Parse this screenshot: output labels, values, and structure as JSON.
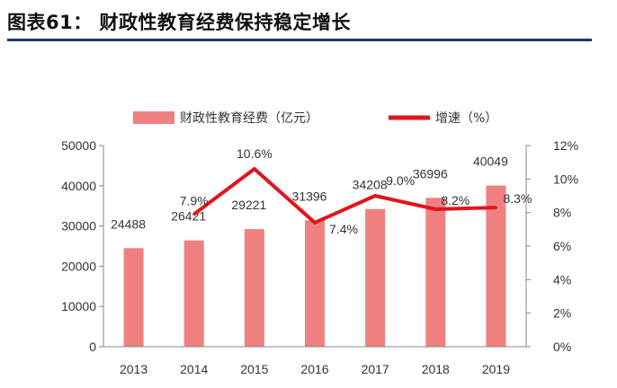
{
  "header": {
    "title": "图表61：  财政性教育经费保持稳定增长",
    "rule_color": "#1f3a6d"
  },
  "chart_data": {
    "type": "bar",
    "categories": [
      "2013",
      "2014",
      "2015",
      "2016",
      "2017",
      "2018",
      "2019"
    ],
    "series": [
      {
        "name": "财政性教育经费（亿元）",
        "type": "bar",
        "axis": "left",
        "color": "#f08080",
        "values": [
          24488,
          26421,
          29221,
          31396,
          34208,
          36996,
          40049
        ],
        "labels": [
          "24488",
          "26421",
          "29221",
          "31396",
          "34208",
          "36996",
          "40049"
        ]
      },
      {
        "name": "增速（%）",
        "type": "line",
        "axis": "right",
        "color": "#e3141b",
        "values": [
          null,
          7.9,
          10.6,
          7.4,
          9.0,
          8.2,
          8.3
        ],
        "labels": [
          "",
          "7.9%",
          "10.6%",
          "7.4%",
          "9.0%",
          "8.2%",
          "8.3%"
        ]
      }
    ],
    "left_axis": {
      "ylim": [
        0,
        50000
      ],
      "ticks": [
        "0",
        "10000",
        "20000",
        "30000",
        "40000",
        "50000"
      ]
    },
    "right_axis": {
      "ylim": [
        0,
        12
      ],
      "ticks": [
        "0%",
        "2%",
        "4%",
        "6%",
        "8%",
        "10%",
        "12%"
      ]
    },
    "legend": {
      "placement": "top"
    },
    "grid": false
  }
}
